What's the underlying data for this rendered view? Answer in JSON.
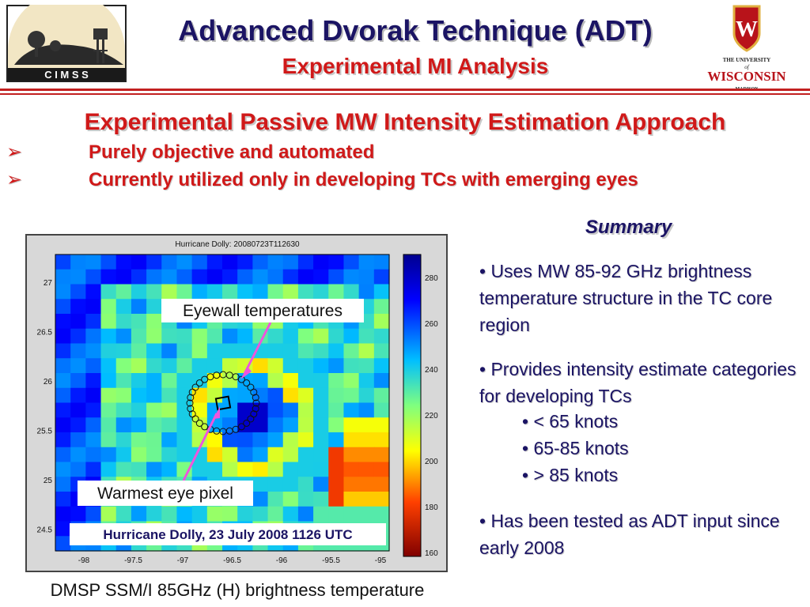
{
  "header": {
    "title": "Advanced Dvorak Technique (ADT)",
    "subtitle": "Experimental MI Analysis",
    "logo_left_text": "C I M S S",
    "logo_right_line1": "THE UNIVERSITY",
    "logo_right_line2": "of",
    "logo_right_line3": "WISCONSIN",
    "logo_right_line4": "MADISON"
  },
  "intro": {
    "heading": "Experimental Passive MW Intensity Estimation Approach",
    "bullets": [
      "Purely objective and automated",
      "Currently utilized only in developing TCs with emerging eyes"
    ],
    "bullet_symbol": "➢"
  },
  "figure": {
    "plot_title": "Hurricane Dolly: 20080723T112630",
    "y_ticks": [
      "27",
      "26.5",
      "26",
      "25.5",
      "25",
      "24.5"
    ],
    "x_ticks": [
      "-98",
      "-97.5",
      "-97",
      "-96.5",
      "-96",
      "-95.5",
      "-95"
    ],
    "colorbar_ticks": [
      "280",
      "260",
      "240",
      "220",
      "200",
      "180",
      "160"
    ],
    "label_eyewall": "Eyewall temperatures",
    "label_warmest": "Warmest eye pixel",
    "label_storm": "Hurricane Dolly, 23 July 2008 1126 UTC",
    "caption": "DMSP SSM/I 85GHz (H) brightness temperature",
    "colors": {
      "arrow": "#ee55dd",
      "storm_label": "#1b1464"
    }
  },
  "summary": {
    "title": "Summary",
    "item1": "• Uses MW 85-92 GHz brightness temperature structure in the TC core region",
    "item2": "• Provides intensity estimate categories for developing TCs",
    "sub": [
      "• < 65 knots",
      "• 65-85 knots",
      "• > 85 knots"
    ],
    "item3": "• Has been tested as ADT input since early 2008"
  },
  "colors": {
    "navy": "#1b1464",
    "red": "#d01919"
  }
}
